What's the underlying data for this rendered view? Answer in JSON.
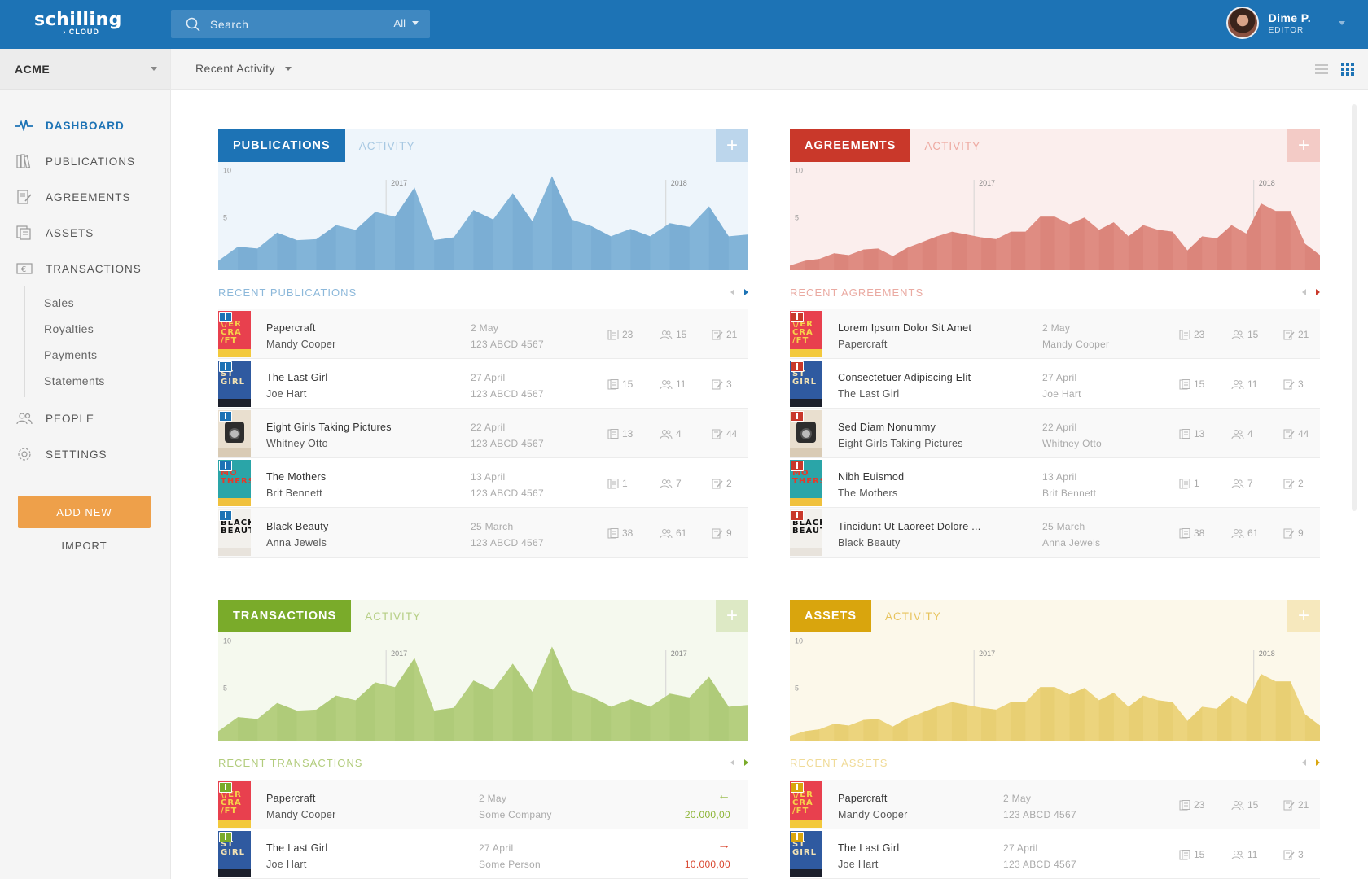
{
  "topbar": {
    "logo_main": "schilling",
    "logo_sub": "› CLOUD",
    "search_placeholder": "Search",
    "search_scope": "All",
    "user_name": "Dime P.",
    "user_role": "EDITOR"
  },
  "sidebar": {
    "org": "ACME",
    "items": {
      "dashboard": "DASHBOARD",
      "publications": "PUBLICATIONS",
      "agreements": "AGREEMENTS",
      "assets": "ASSETS",
      "transactions": "TRANSACTIONS",
      "people": "PEOPLE",
      "settings": "SETTINGS"
    },
    "sub_items": [
      "Sales",
      "Royalties",
      "Payments",
      "Statements"
    ],
    "add_new": "ADD NEW",
    "import": "IMPORT"
  },
  "subheader": {
    "view": "Recent Activity"
  },
  "colors": {
    "publications": "#1d73b5",
    "agreements": "#c9382a",
    "transactions": "#7aab2a",
    "assets": "#d9a50d"
  },
  "cards": {
    "publications": {
      "tab": "PUBLICATIONS",
      "tab2": "ACTIVITY",
      "plus": "+",
      "list_title": "RECENT PUBLICATIONS",
      "rows": [
        {
          "title": "Papercraft",
          "sub": "Mandy Cooper",
          "date": "2 May",
          "code": "123 ABCD 4567",
          "s1": "23",
          "s2": "15",
          "s3": "21"
        },
        {
          "title": "The Last Girl",
          "sub": "Joe Hart",
          "date": "27 April",
          "code": "123 ABCD 4567",
          "s1": "15",
          "s2": "11",
          "s3": "3"
        },
        {
          "title": "Eight Girls Taking Pictures",
          "sub": "Whitney Otto",
          "date": "22 April",
          "code": "123 ABCD 4567",
          "s1": "13",
          "s2": "4",
          "s3": "44"
        },
        {
          "title": "The Mothers",
          "sub": "Brit Bennett",
          "date": "13 April",
          "code": "123 ABCD 4567",
          "s1": "1",
          "s2": "7",
          "s3": "2"
        },
        {
          "title": "Black Beauty",
          "sub": "Anna Jewels",
          "date": "25 March",
          "code": "123 ABCD 4567",
          "s1": "38",
          "s2": "61",
          "s3": "9"
        }
      ]
    },
    "agreements": {
      "tab": "AGREEMENTS",
      "tab2": "ACTIVITY",
      "plus": "+",
      "list_title": "RECENT AGREEMENTS",
      "rows": [
        {
          "title": "Lorem Ipsum Dolor Sit Amet",
          "sub": "Papercraft",
          "date": "2 May",
          "code": "Mandy Cooper",
          "s1": "23",
          "s2": "15",
          "s3": "21"
        },
        {
          "title": "Consectetuer Adipiscing Elit",
          "sub": "The Last Girl",
          "date": "27 April",
          "code": "Joe Hart",
          "s1": "15",
          "s2": "11",
          "s3": "3"
        },
        {
          "title": "Sed Diam Nonummy",
          "sub": "Eight Girls Taking Pictures",
          "date": "22 April",
          "code": "Whitney Otto",
          "s1": "13",
          "s2": "4",
          "s3": "44"
        },
        {
          "title": "Nibh Euismod",
          "sub": "The Mothers",
          "date": "13 April",
          "code": "Brit Bennett",
          "s1": "1",
          "s2": "7",
          "s3": "2"
        },
        {
          "title": "Tincidunt Ut Laoreet Dolore ...",
          "sub": "Black Beauty",
          "date": "25 March",
          "code": "Anna Jewels",
          "s1": "38",
          "s2": "61",
          "s3": "9"
        }
      ]
    },
    "transactions": {
      "tab": "TRANSACTIONS",
      "tab2": "ACTIVITY",
      "plus": "+",
      "list_title": "RECENT TRANSACTIONS",
      "rows": [
        {
          "title": "Papercraft",
          "sub": "Mandy Cooper",
          "date": "2 May",
          "code": "Some Company",
          "arrow": "←",
          "amount": "20.000,00",
          "amount_color": "#8db536"
        },
        {
          "title": "The Last Girl",
          "sub": "Joe Hart",
          "date": "27 April",
          "code": "Some Person",
          "arrow": "→",
          "amount": "10.000,00",
          "amount_color": "#d9472f"
        }
      ]
    },
    "assets": {
      "tab": "ASSETS",
      "tab2": "ACTIVITY",
      "plus": "+",
      "list_title": "RECENT ASSETS",
      "rows": [
        {
          "title": "Papercraft",
          "sub": "Mandy Cooper",
          "date": "2 May",
          "code": "123 ABCD 4567",
          "s1": "23",
          "s2": "15",
          "s3": "21"
        },
        {
          "title": "The Last Girl",
          "sub": "Joe Hart",
          "date": "27 April",
          "code": "123 ABCD 4567",
          "s1": "15",
          "s2": "11",
          "s3": "3"
        }
      ]
    }
  },
  "books": [
    {
      "title_text": "\\/ER\nCRA\n/FT",
      "bg": "#e8404e",
      "fg": "#f7d24a",
      "stripe": "#f3c93c"
    },
    {
      "title_text": "ST\nGIRL",
      "bg": "#2f5aa0",
      "fg": "#f3e3b5",
      "stripe": "#1b1f2b"
    },
    {
      "title_text": "",
      "bg": "#e9dfcf",
      "fg": "#333",
      "stripe": "#d9cbb5",
      "camera": true
    },
    {
      "title_text": "MO\nTHERS",
      "bg": "#2aa5a8",
      "fg": "#e53a2b",
      "stripe": "#f0c13d"
    },
    {
      "title_text": "BLACK\nBEAUTY",
      "bg": "#f2f0ec",
      "fg": "#111",
      "stripe": "#e8e3dc"
    }
  ],
  "chart_data": [
    {
      "type": "area",
      "series": [
        {
          "values": [
            1,
            2.5,
            2.3,
            4,
            3.2,
            3.3,
            4.8,
            4.3,
            6.2,
            5.7,
            8.8,
            3.2,
            3.5,
            6.4,
            5.4,
            8.2,
            5.2,
            10,
            5.4,
            4.7,
            3.6,
            4.4,
            3.6,
            5,
            4.6,
            6.8,
            3.6,
            3.8
          ]
        }
      ],
      "ylim": [
        0,
        11
      ],
      "ytick_labels": [
        "5",
        "10"
      ],
      "markers": [
        {
          "label": "2017",
          "x": 9
        },
        {
          "label": "2018",
          "x": 24
        }
      ]
    },
    {
      "type": "area",
      "series": [
        {
          "values": [
            0.5,
            1,
            1.2,
            1.8,
            1.6,
            2.2,
            2.3,
            1.5,
            2.4,
            3,
            3.6,
            4.1,
            3.8,
            3.5,
            3.3,
            4.1,
            4.1,
            5.7,
            5.7,
            4.9,
            5.6,
            4.3,
            5.1,
            3.6,
            4.8,
            4.3,
            4.1,
            2.1,
            3.6,
            3.4,
            4.8,
            3.9,
            7.1,
            6.3,
            6.3,
            2.8,
            1.6
          ]
        }
      ],
      "ylim": [
        0,
        11
      ],
      "ytick_labels": [
        "5",
        "10"
      ],
      "markers": [
        {
          "label": "2017",
          "x": 9
        },
        {
          "label": "2018",
          "x": 24
        }
      ]
    },
    {
      "type": "area",
      "series": [
        {
          "values": [
            1,
            2.5,
            2.3,
            4,
            3.2,
            3.3,
            4.8,
            4.3,
            6.2,
            5.7,
            8.8,
            3.2,
            3.5,
            6.4,
            5.4,
            8.2,
            5.2,
            10,
            5.4,
            4.7,
            3.6,
            4.4,
            3.6,
            5,
            4.6,
            6.8,
            3.6,
            3.8
          ]
        }
      ],
      "ylim": [
        0,
        11
      ],
      "ytick_labels": [
        "5",
        "10"
      ],
      "markers": [
        {
          "label": "2017",
          "x": 9
        },
        {
          "label": "2017",
          "x": 24
        }
      ]
    },
    {
      "type": "area",
      "series": [
        {
          "values": [
            0.5,
            1,
            1.2,
            1.8,
            1.6,
            2.2,
            2.3,
            1.5,
            2.4,
            3,
            3.6,
            4.1,
            3.8,
            3.5,
            3.3,
            4.1,
            4.1,
            5.7,
            5.7,
            4.9,
            5.6,
            4.3,
            5.1,
            3.6,
            4.8,
            4.3,
            4.1,
            2.1,
            3.6,
            3.4,
            4.8,
            3.9,
            7.1,
            6.3,
            6.3,
            2.8,
            1.6
          ]
        }
      ],
      "ylim": [
        0,
        11
      ],
      "ytick_labels": [
        "5",
        "10"
      ],
      "markers": [
        {
          "label": "2017",
          "x": 9
        },
        {
          "label": "2018",
          "x": 24
        }
      ]
    }
  ]
}
